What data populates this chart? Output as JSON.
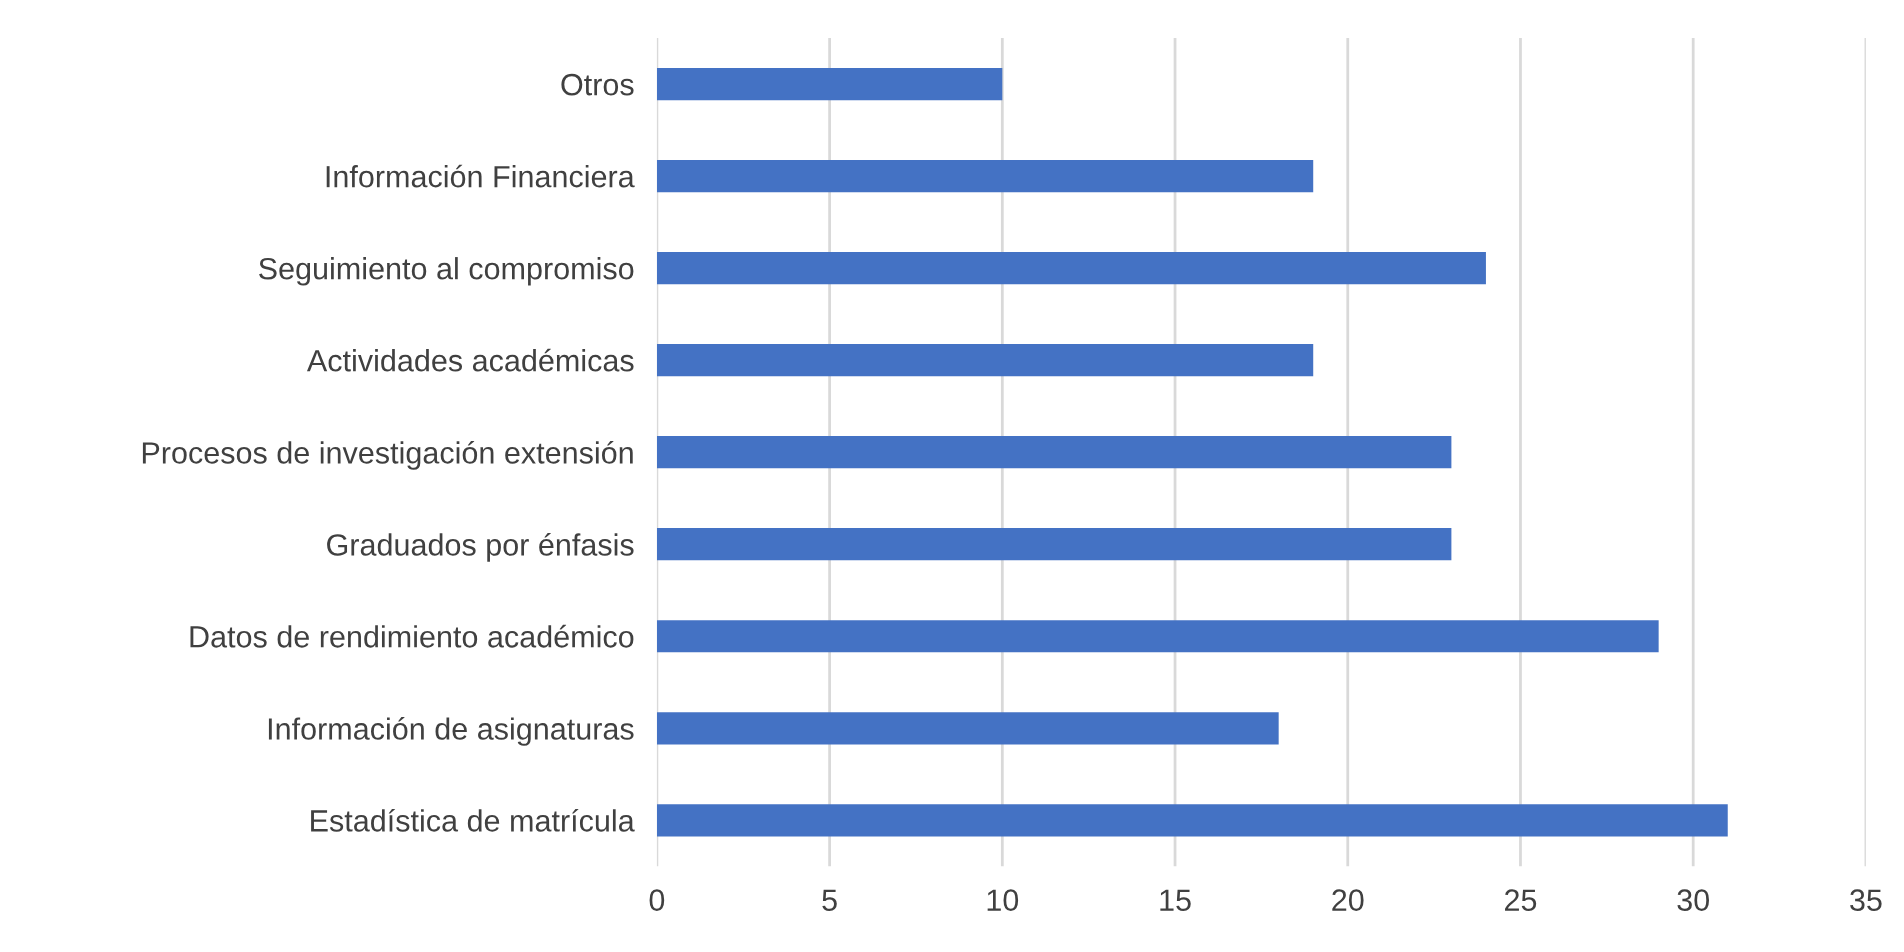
{
  "chart_data": {
    "type": "bar",
    "orientation": "horizontal",
    "categories": [
      "Otros",
      "Información Financiera",
      "Seguimiento al compromiso",
      "Actividades académicas",
      "Procesos de investigación extensión",
      "Graduados por énfasis",
      "Datos de rendimiento académico",
      "Información de asignaturas",
      "Estadística de matrícula"
    ],
    "values": [
      10,
      19,
      24,
      19,
      23,
      23,
      29,
      18,
      31
    ],
    "color": "#4472c4",
    "xlim": [
      0,
      35
    ],
    "xticks": [
      0,
      5,
      10,
      15,
      20,
      25,
      30,
      35
    ],
    "grid": "x"
  }
}
